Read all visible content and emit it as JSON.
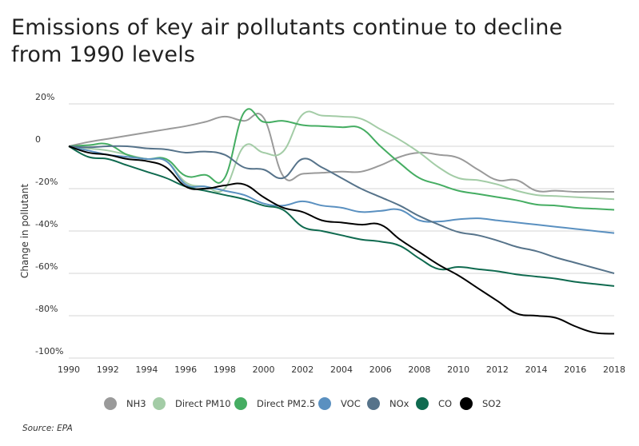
{
  "chart_data": {
    "type": "line",
    "title": "Emissions of key air pollutants continue to decline from 1990 levels",
    "title_lines": [
      "Emissions of key air pollutants continue to decline",
      "from 1990 levels"
    ],
    "xlabel": "",
    "ylabel": "Change in pollutant",
    "xlim": [
      1990,
      2018
    ],
    "ylim": [
      -100,
      20
    ],
    "grid": true,
    "legend_position": "bottom",
    "x_ticks": [
      "1990",
      "1992",
      "1994",
      "1996",
      "1998",
      "2000",
      "2002",
      "2004",
      "2006",
      "2008",
      "2010",
      "2012",
      "2014",
      "2016",
      "2018"
    ],
    "y_ticks": [
      {
        "value": 20,
        "label": "20%"
      },
      {
        "value": 0,
        "label": "0"
      },
      {
        "value": -20,
        "label": "-20%"
      },
      {
        "value": -40,
        "label": "-40%"
      },
      {
        "value": -60,
        "label": "-60%"
      },
      {
        "value": -80,
        "label": "-80%"
      },
      {
        "value": -100,
        "label": "-100%"
      }
    ],
    "x": [
      1990,
      1991,
      1992,
      1993,
      1994,
      1995,
      1996,
      1997,
      1998,
      1999,
      2000,
      2001,
      2002,
      2003,
      2004,
      2005,
      2006,
      2007,
      2008,
      2009,
      2010,
      2011,
      2012,
      2013,
      2014,
      2015,
      2016,
      2017,
      2018
    ],
    "series": [
      {
        "name": "NH3",
        "color": "#9a9a9a",
        "values": [
          0,
          2,
          3.5,
          5,
          6.5,
          8,
          9.5,
          11.5,
          14,
          12,
          13.5,
          -14,
          -13,
          -12.5,
          -12,
          -12,
          -9,
          -5,
          -3,
          -4,
          -5.5,
          -11,
          -16,
          -16,
          -21,
          -21,
          -21.5,
          -21.5,
          -21.5
        ]
      },
      {
        "name": "Direct PM10",
        "color": "#a3cca6",
        "values": [
          0,
          -1,
          -2,
          -4,
          -6,
          -7,
          -17,
          -19,
          -20,
          0,
          -3,
          -2.5,
          15,
          14.5,
          14,
          13,
          8,
          3,
          -3,
          -10,
          -15,
          -16,
          -18,
          -21,
          -23,
          -23.5,
          -24,
          -24.5,
          -25
        ]
      },
      {
        "name": "Direct PM2.5",
        "color": "#45ad62",
        "values": [
          0,
          0.5,
          1,
          -4,
          -6,
          -6,
          -14,
          -13.5,
          -15,
          16,
          11.5,
          12,
          10,
          9.5,
          9,
          8.5,
          0,
          -8,
          -15,
          -18,
          -21,
          -22.5,
          -24,
          -25.5,
          -27.5,
          -28,
          -29,
          -29.5,
          -30
        ]
      },
      {
        "name": "VOC",
        "color": "#5a90c0",
        "values": [
          0,
          -2,
          -4,
          -5,
          -6,
          -7,
          -18,
          -19,
          -21,
          -23,
          -27,
          -28,
          -26,
          -28,
          -29,
          -31,
          -30.5,
          -30,
          -35,
          -35.5,
          -34.5,
          -34,
          -35,
          -36,
          -37,
          -38,
          -39,
          -40,
          -41
        ]
      },
      {
        "name": "NOx",
        "color": "#56738a",
        "values": [
          0,
          -0.5,
          0,
          0,
          -1,
          -1.5,
          -3,
          -2.5,
          -4,
          -10,
          -11,
          -15,
          -6,
          -10,
          -15,
          -20,
          -24,
          -28,
          -33,
          -37,
          -40.5,
          -42,
          -44.5,
          -47.5,
          -49.5,
          -52.5,
          -55,
          -57.5,
          -60
        ]
      },
      {
        "name": "CO",
        "color": "#0f6a4f",
        "values": [
          0,
          -5,
          -6,
          -9,
          -12,
          -15,
          -19,
          -21,
          -23,
          -25,
          -28,
          -30,
          -38,
          -40,
          -42,
          -44,
          -45,
          -47,
          -53,
          -58,
          -57,
          -58,
          -59,
          -60.5,
          -61.5,
          -62.5,
          -64,
          -65,
          -66
        ]
      },
      {
        "name": "SO2",
        "color": "#000000",
        "values": [
          0,
          -3,
          -4,
          -6,
          -7,
          -10,
          -19,
          -20,
          -18.5,
          -18,
          -24,
          -29,
          -31,
          -35,
          -36,
          -37,
          -37,
          -44,
          -50,
          -56,
          -61,
          -67,
          -73,
          -79,
          -80,
          -81,
          -85,
          -88,
          -88.5
        ]
      }
    ],
    "source": "Source: EPA"
  }
}
